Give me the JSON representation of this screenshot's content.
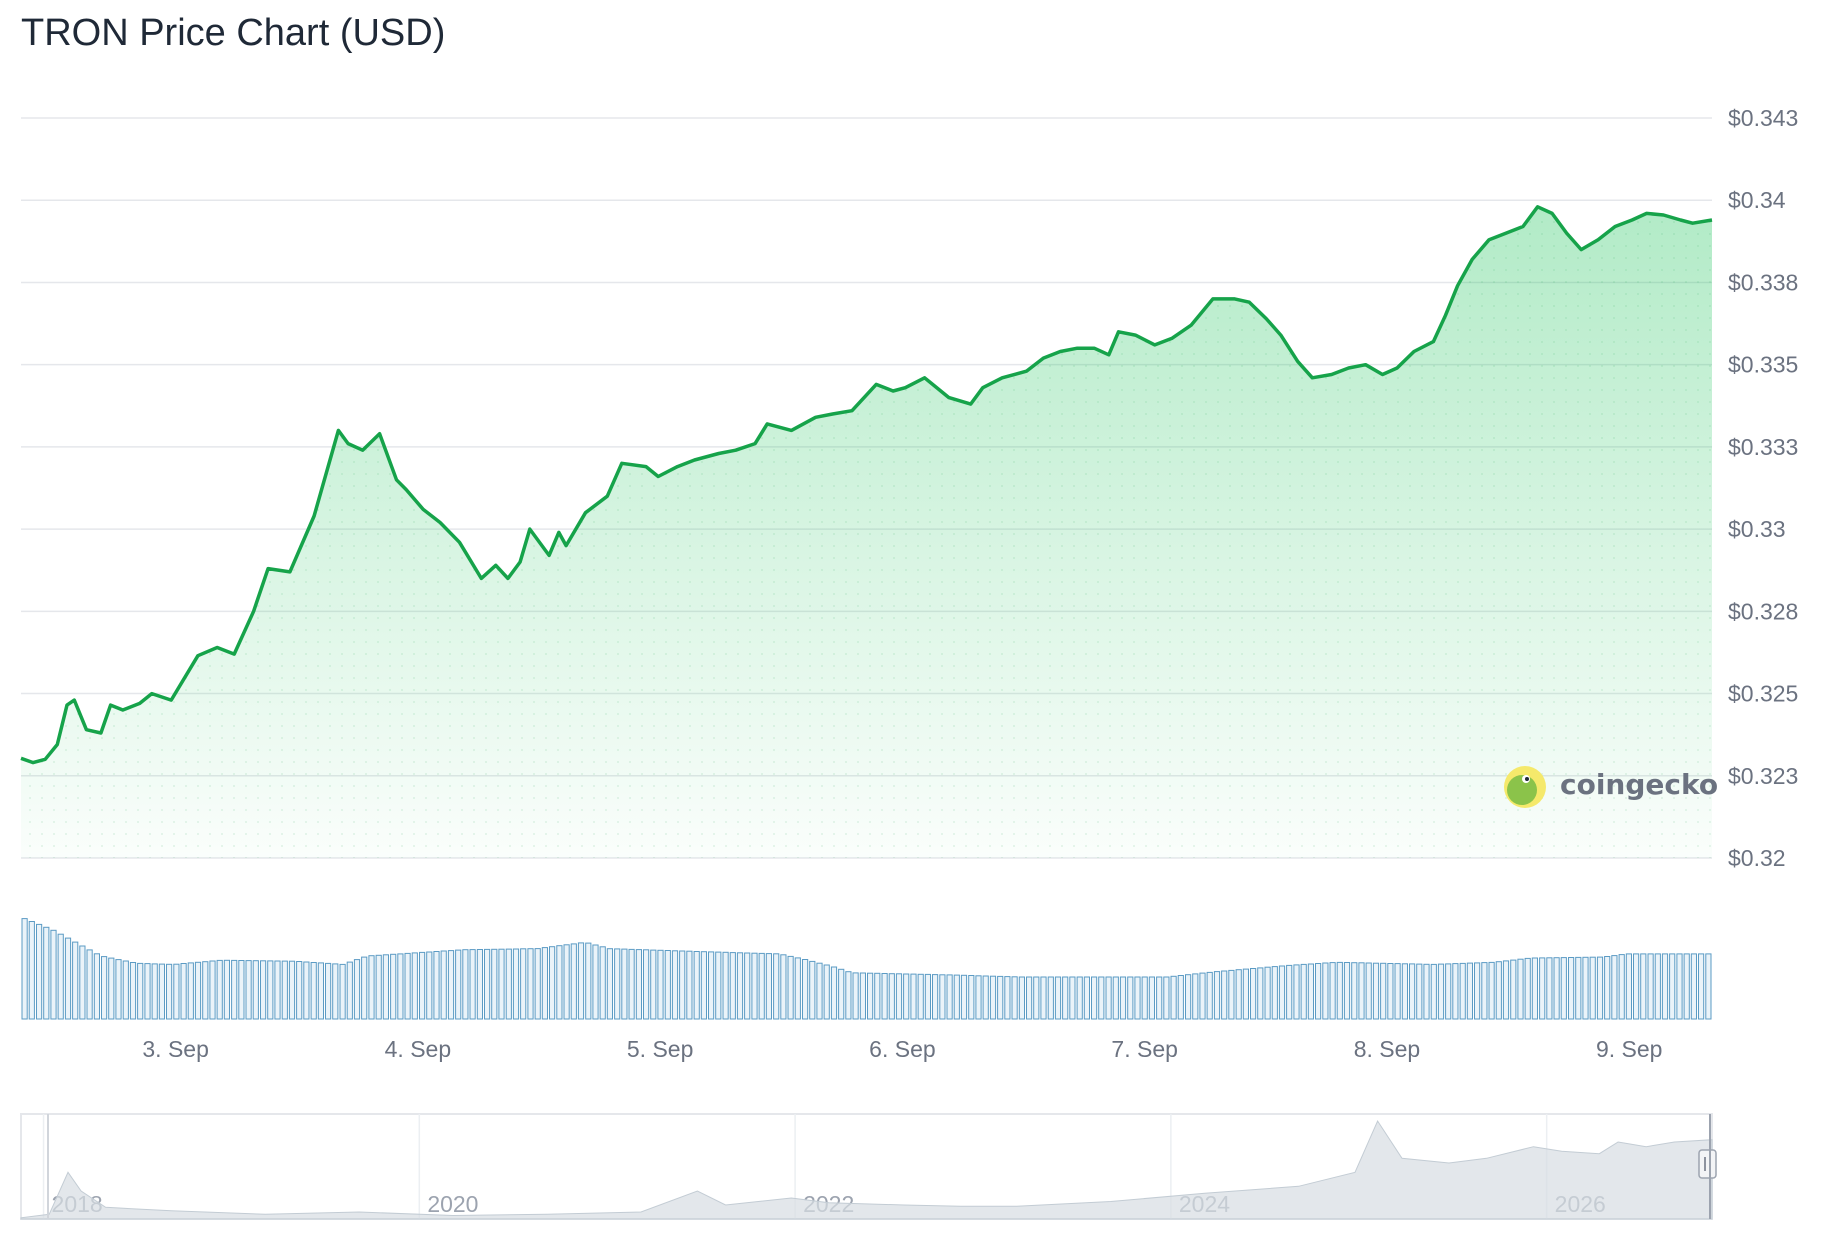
{
  "title": "TRON Price Chart (USD)",
  "brand": "coingecko",
  "brand_icon": "gecko-logo-icon",
  "colors": {
    "line": "#16a34a",
    "area": "#22c55e",
    "volume": "#5b9bc4",
    "grid": "#e5e7eb",
    "navigator_area": "#d7dde3"
  },
  "chart_data": [
    {
      "type": "line",
      "title": "TRON Price Chart (USD)",
      "xlabel": "",
      "ylabel": "",
      "x_ticks": [
        "3. Sep",
        "4. Sep",
        "5. Sep",
        "6. Sep",
        "7. Sep",
        "8. Sep",
        "9. Sep"
      ],
      "y_ticks": [
        "$0.32",
        "$0.323",
        "$0.325",
        "$0.328",
        "$0.33",
        "$0.333",
        "$0.335",
        "$0.338",
        "$0.34",
        "$0.343"
      ],
      "y_tick_values": [
        0.32,
        0.3225,
        0.325,
        0.3275,
        0.33,
        0.3325,
        0.335,
        0.3375,
        0.34,
        0.3425
      ],
      "ylim": [
        0.32,
        0.3425
      ],
      "xlim": [
        2.37,
        9.35
      ],
      "x_unit": "day of September",
      "grid": true,
      "series": [
        {
          "values": [
            [
              2.37,
              0.32303
            ],
            [
              2.42,
              0.3229
            ],
            [
              2.47,
              0.323
            ],
            [
              2.52,
              0.32345
            ],
            [
              2.56,
              0.32465
            ],
            [
              2.59,
              0.3248
            ],
            [
              2.64,
              0.3239
            ],
            [
              2.7,
              0.3238
            ],
            [
              2.74,
              0.32465
            ],
            [
              2.79,
              0.3245
            ],
            [
              2.86,
              0.3247
            ],
            [
              2.91,
              0.325
            ],
            [
              2.99,
              0.3248
            ],
            [
              3.1,
              0.32615
            ],
            [
              3.18,
              0.3264
            ],
            [
              3.25,
              0.3262
            ],
            [
              3.33,
              0.3275
            ],
            [
              3.39,
              0.3288
            ],
            [
              3.48,
              0.3287
            ],
            [
              3.58,
              0.3304
            ],
            [
              3.68,
              0.333
            ],
            [
              3.72,
              0.3326
            ],
            [
              3.78,
              0.3324
            ],
            [
              3.85,
              0.3329
            ],
            [
              3.92,
              0.3315
            ],
            [
              3.96,
              0.3312
            ],
            [
              4.03,
              0.3306
            ],
            [
              4.1,
              0.3302
            ],
            [
              4.18,
              0.3296
            ],
            [
              4.27,
              0.3285
            ],
            [
              4.33,
              0.3289
            ],
            [
              4.38,
              0.3285
            ],
            [
              4.43,
              0.329
            ],
            [
              4.47,
              0.33
            ],
            [
              4.55,
              0.3292
            ],
            [
              4.59,
              0.3299
            ],
            [
              4.62,
              0.3295
            ],
            [
              4.7,
              0.3305
            ],
            [
              4.79,
              0.331
            ],
            [
              4.85,
              0.332
            ],
            [
              4.95,
              0.3319
            ],
            [
              5.0,
              0.3316
            ],
            [
              5.08,
              0.3319
            ],
            [
              5.15,
              0.3321
            ],
            [
              5.25,
              0.3323
            ],
            [
              5.32,
              0.3324
            ],
            [
              5.4,
              0.3326
            ],
            [
              5.45,
              0.3332
            ],
            [
              5.55,
              0.333
            ],
            [
              5.65,
              0.3334
            ],
            [
              5.72,
              0.3335
            ],
            [
              5.8,
              0.3336
            ],
            [
              5.9,
              0.3344
            ],
            [
              5.97,
              0.3342
            ],
            [
              6.02,
              0.3343
            ],
            [
              6.1,
              0.3346
            ],
            [
              6.2,
              0.334
            ],
            [
              6.29,
              0.3338
            ],
            [
              6.34,
              0.3343
            ],
            [
              6.42,
              0.3346
            ],
            [
              6.52,
              0.3348
            ],
            [
              6.59,
              0.3352
            ],
            [
              6.66,
              0.3354
            ],
            [
              6.73,
              0.3355
            ],
            [
              6.8,
              0.3355
            ],
            [
              6.86,
              0.3353
            ],
            [
              6.9,
              0.336
            ],
            [
              6.97,
              0.3359
            ],
            [
              7.05,
              0.3356
            ],
            [
              7.12,
              0.3358
            ],
            [
              7.2,
              0.3362
            ],
            [
              7.29,
              0.337
            ],
            [
              7.38,
              0.337
            ],
            [
              7.44,
              0.3369
            ],
            [
              7.51,
              0.3364
            ],
            [
              7.57,
              0.3359
            ],
            [
              7.64,
              0.3351
            ],
            [
              7.7,
              0.3346
            ],
            [
              7.78,
              0.3347
            ],
            [
              7.85,
              0.3349
            ],
            [
              7.92,
              0.335
            ],
            [
              7.99,
              0.3347
            ],
            [
              8.05,
              0.3349
            ],
            [
              8.12,
              0.3354
            ],
            [
              8.2,
              0.3357
            ],
            [
              8.25,
              0.3365
            ],
            [
              8.3,
              0.3374
            ],
            [
              8.36,
              0.3382
            ],
            [
              8.43,
              0.3388
            ],
            [
              8.5,
              0.339
            ],
            [
              8.57,
              0.3392
            ],
            [
              8.63,
              0.3398
            ],
            [
              8.69,
              0.3396
            ],
            [
              8.75,
              0.339
            ],
            [
              8.81,
              0.3385
            ],
            [
              8.88,
              0.3388
            ],
            [
              8.95,
              0.3392
            ],
            [
              9.02,
              0.3394
            ],
            [
              9.08,
              0.3396
            ],
            [
              9.15,
              0.33955
            ],
            [
              9.22,
              0.3394
            ],
            [
              9.27,
              0.3393
            ],
            [
              9.35,
              0.3394
            ]
          ]
        }
      ]
    },
    {
      "type": "bar",
      "title": "",
      "note_units": "relative volume (no axis printed)",
      "xlim": [
        2.37,
        9.35
      ],
      "volume_profile": [
        [
          2.37,
          0.97
        ],
        [
          2.5,
          0.85
        ],
        [
          2.7,
          0.6
        ],
        [
          2.85,
          0.53
        ],
        [
          3.0,
          0.52
        ],
        [
          3.2,
          0.56
        ],
        [
          3.5,
          0.55
        ],
        [
          3.7,
          0.52
        ],
        [
          3.8,
          0.6
        ],
        [
          4.2,
          0.66
        ],
        [
          4.5,
          0.67
        ],
        [
          4.7,
          0.73
        ],
        [
          4.8,
          0.67
        ],
        [
          5.2,
          0.64
        ],
        [
          5.5,
          0.62
        ],
        [
          5.6,
          0.57
        ],
        [
          5.72,
          0.5
        ],
        [
          5.8,
          0.44
        ],
        [
          6.2,
          0.42
        ],
        [
          6.5,
          0.4
        ],
        [
          6.8,
          0.4
        ],
        [
          7.1,
          0.4
        ],
        [
          7.3,
          0.45
        ],
        [
          7.6,
          0.51
        ],
        [
          7.8,
          0.54
        ],
        [
          8.2,
          0.52
        ],
        [
          8.45,
          0.54
        ],
        [
          8.6,
          0.58
        ],
        [
          8.9,
          0.59
        ],
        [
          9.0,
          0.62
        ],
        [
          9.35,
          0.62
        ]
      ]
    },
    {
      "type": "area",
      "title": "",
      "x_ticks": [
        "2018",
        "2020",
        "2022",
        "2024",
        "2026"
      ],
      "x_tick_values": [
        2018,
        2020,
        2022,
        2024,
        2026
      ],
      "xlim": [
        2017.7,
        2026.7
      ],
      "history": [
        [
          2017.7,
          0.005
        ],
        [
          2017.85,
          0.02
        ],
        [
          2017.95,
          0.2
        ],
        [
          2018.02,
          0.12
        ],
        [
          2018.15,
          0.05
        ],
        [
          2018.5,
          0.035
        ],
        [
          2019.0,
          0.02
        ],
        [
          2019.5,
          0.03
        ],
        [
          2020.0,
          0.015
        ],
        [
          2020.5,
          0.02
        ],
        [
          2021.0,
          0.03
        ],
        [
          2021.3,
          0.12
        ],
        [
          2021.45,
          0.06
        ],
        [
          2021.8,
          0.09
        ],
        [
          2022.0,
          0.07
        ],
        [
          2022.4,
          0.06
        ],
        [
          2022.7,
          0.055
        ],
        [
          2023.0,
          0.055
        ],
        [
          2023.5,
          0.075
        ],
        [
          2024.0,
          0.11
        ],
        [
          2024.5,
          0.14
        ],
        [
          2024.8,
          0.2
        ],
        [
          2024.92,
          0.42
        ],
        [
          2025.05,
          0.26
        ],
        [
          2025.3,
          0.24
        ],
        [
          2025.5,
          0.26
        ],
        [
          2025.75,
          0.31
        ],
        [
          2025.9,
          0.29
        ],
        [
          2026.1,
          0.28
        ],
        [
          2026.2,
          0.33
        ],
        [
          2026.35,
          0.31
        ],
        [
          2026.5,
          0.33
        ],
        [
          2026.7,
          0.34
        ]
      ]
    }
  ]
}
